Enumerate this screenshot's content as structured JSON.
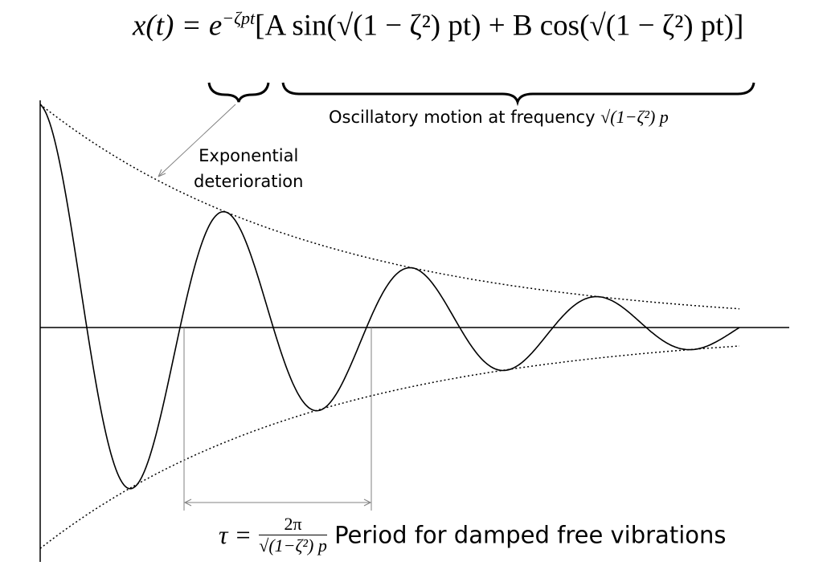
{
  "equation": {
    "lhs": "x(t) = e",
    "exponent": "−ζpt",
    "bracket_body": "[A sin(√(1 − ζ²) pt) + B cos(√(1 − ζ²) pt)]"
  },
  "annotations": {
    "oscillatory_label": "Oscillatory motion at frequency",
    "oscillatory_math": "√(1−ζ²) p",
    "exponential_line1": "Exponential",
    "exponential_line2": "deterioration",
    "period_tau": "τ =",
    "period_numerator": "2π",
    "period_denominator": "√(1−ζ²) p",
    "period_label": "Period for damped free vibrations"
  },
  "curve": {
    "description_params": {
      "initial_amplitude": 1.0,
      "damping_ratio_approx": 0.1,
      "cycles_shown": 3.75
    }
  },
  "colors": {
    "curve": "#000000",
    "guide": "#808080"
  }
}
